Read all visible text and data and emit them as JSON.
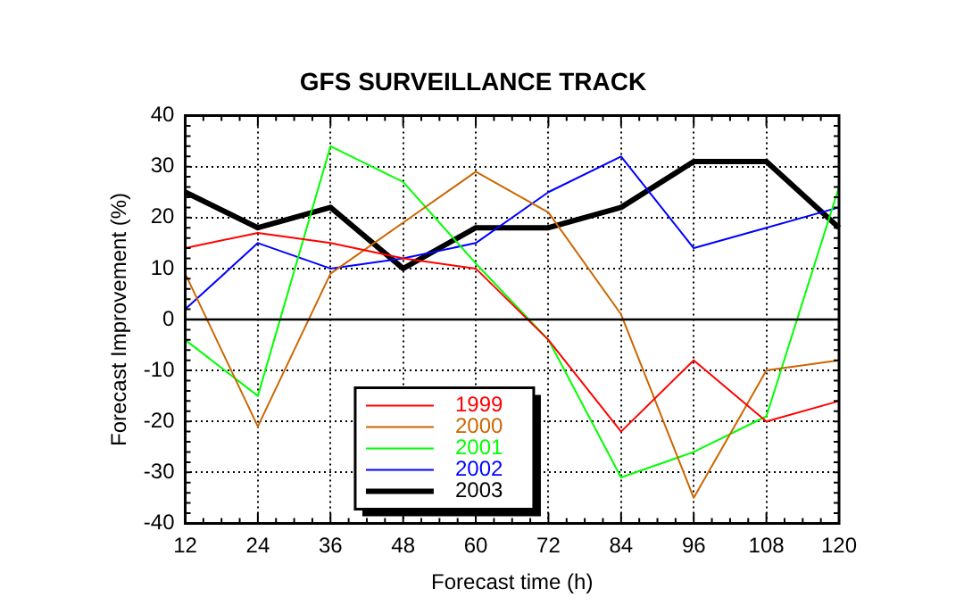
{
  "chart_data": {
    "type": "line",
    "title": "GFS SURVEILLANCE TRACK",
    "xlabel": "Forecast time (h)",
    "ylabel": "Forecast Improvement (%)",
    "categories": [
      "12",
      "24",
      "36",
      "48",
      "60",
      "72",
      "84",
      "96",
      "108",
      "120"
    ],
    "series": [
      {
        "name": "1999",
        "color": "#ff0000",
        "values": [
          14,
          17,
          15,
          12,
          10,
          -4,
          -22,
          -8,
          -20,
          -16
        ]
      },
      {
        "name": "2000",
        "color": "#cc6600",
        "values": [
          9,
          -21,
          9,
          19,
          29,
          21,
          1,
          -35,
          -10,
          -8
        ]
      },
      {
        "name": "2001",
        "color": "#00ff00",
        "values": [
          -4,
          -15,
          34,
          27,
          11,
          -4,
          -31,
          -26,
          -19,
          26
        ]
      },
      {
        "name": "2002",
        "color": "#0000ff",
        "values": [
          2,
          15,
          10,
          12,
          15,
          25,
          32,
          14,
          18,
          22
        ]
      },
      {
        "name": "2003",
        "color": "#000000",
        "values": [
          25,
          18,
          22,
          10,
          18,
          18,
          22,
          31,
          31,
          18
        ]
      }
    ],
    "ylim": [
      -40,
      40
    ],
    "yticks": [
      -40,
      -30,
      -20,
      -10,
      0,
      10,
      20,
      30,
      40
    ],
    "ref_lines": [
      {
        "axis": "y",
        "value": 0,
        "color": "#000000"
      }
    ],
    "grid": true,
    "legend": "bottom left",
    "marker": "none",
    "line_style": "solid"
  }
}
